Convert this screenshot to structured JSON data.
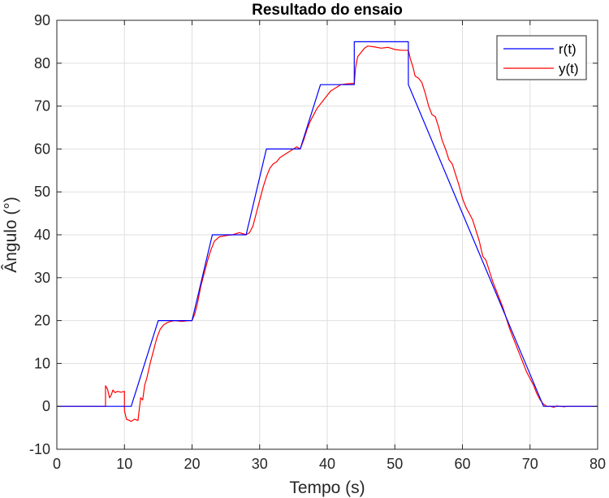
{
  "chart_data": {
    "type": "line",
    "title": "Resultado do ensaio",
    "xlabel": "Tempo (s)",
    "ylabel": "Ângulo (°)",
    "xlim": [
      0,
      80
    ],
    "ylim": [
      -10,
      90
    ],
    "xticks": [
      0,
      10,
      20,
      30,
      40,
      50,
      60,
      70,
      80
    ],
    "yticks": [
      -10,
      0,
      10,
      20,
      30,
      40,
      50,
      60,
      70,
      80,
      90
    ],
    "grid": true,
    "legend_position": "top-right",
    "series": [
      {
        "name": "r(t)",
        "color": "#0000ff",
        "x": [
          0,
          11,
          15,
          20,
          23,
          28,
          31,
          36,
          39,
          44,
          44,
          52,
          52,
          72,
          80
        ],
        "y": [
          0,
          0,
          20,
          20,
          40,
          40,
          60,
          60,
          75,
          75,
          85,
          85,
          75,
          0,
          0
        ]
      },
      {
        "name": "y(t)",
        "color": "#ff0000",
        "x": [
          0,
          7.2,
          7.2,
          7.5,
          7.8,
          8.0,
          8.3,
          8.6,
          9.0,
          9.5,
          10.0,
          10.0,
          10.3,
          10.6,
          11.0,
          11.5,
          12.0,
          12.4,
          12.7,
          13.0,
          13.3,
          13.8,
          14.3,
          14.8,
          15.3,
          15.8,
          16.3,
          16.8,
          17.5,
          18.5,
          19.5,
          20.0,
          20.4,
          20.8,
          21.3,
          21.8,
          22.3,
          22.8,
          23.3,
          24.0,
          25.0,
          26.0,
          27.0,
          28.0,
          28.5,
          29.0,
          29.5,
          30.0,
          30.5,
          31.0,
          31.5,
          32.0,
          32.5,
          33.0,
          34.0,
          35.0,
          35.5,
          36.0,
          36.5,
          37.0,
          37.5,
          38.0,
          38.5,
          39.0,
          39.5,
          40.0,
          40.5,
          41.0,
          41.5,
          42.0,
          43.0,
          44.0,
          44.2,
          44.5,
          45.0,
          45.5,
          46.0,
          47.0,
          48.0,
          49.0,
          50.0,
          51.0,
          52.0,
          52.3,
          52.7,
          53.0,
          53.5,
          54.0,
          54.5,
          55.0,
          55.5,
          56.0,
          56.5,
          57.0,
          57.5,
          58.0,
          58.5,
          59.0,
          59.5,
          60.0,
          60.5,
          61.0,
          61.5,
          62.0,
          62.5,
          63.0,
          63.5,
          64.0,
          64.5,
          65.0,
          65.5,
          66.0,
          66.5,
          67.0,
          67.5,
          68.0,
          68.5,
          69.0,
          69.5,
          70.0,
          70.5,
          71.0,
          71.5,
          72.0,
          72.5,
          73.0,
          73.5,
          74.0,
          74.5,
          75.0,
          75.5,
          76.0,
          77.0,
          78.0,
          80.0
        ],
        "y": [
          0,
          0,
          4.8,
          4.0,
          2.0,
          2.5,
          3.8,
          3.2,
          3.5,
          3.3,
          3.5,
          -1.0,
          -3.0,
          -3.2,
          -3.5,
          -3.0,
          -3.3,
          2.0,
          1.5,
          5.0,
          6.5,
          10.0,
          13.0,
          16.0,
          18.0,
          19.0,
          19.5,
          19.8,
          20.0,
          19.8,
          20.0,
          20.0,
          21.5,
          24.0,
          28.0,
          31.0,
          34.0,
          36.5,
          38.5,
          39.5,
          39.8,
          40.0,
          40.5,
          40.0,
          40.5,
          42.0,
          45.0,
          48.0,
          51.0,
          53.5,
          55.5,
          56.5,
          57.0,
          58.0,
          59.0,
          60.0,
          60.5,
          60.0,
          62.0,
          64.5,
          66.5,
          68.0,
          69.5,
          70.5,
          71.5,
          72.5,
          73.5,
          74.0,
          74.5,
          75.0,
          75.2,
          75.3,
          79.0,
          81.5,
          82.5,
          83.5,
          84.0,
          83.8,
          83.5,
          83.7,
          83.2,
          83.0,
          83.0,
          81.0,
          79.0,
          77.0,
          76.5,
          75.5,
          73.0,
          70.0,
          68.0,
          67.5,
          65.0,
          62.0,
          60.0,
          57.5,
          56.5,
          54.0,
          51.5,
          48.5,
          46.5,
          45.0,
          43.5,
          41.0,
          38.5,
          35.0,
          34.0,
          31.5,
          29.0,
          27.0,
          25.0,
          23.0,
          20.5,
          18.0,
          16.0,
          14.0,
          12.0,
          10.0,
          8.0,
          6.5,
          5.0,
          3.0,
          1.5,
          0.5,
          0.0,
          0.0,
          -0.2,
          0.1,
          0.0,
          -0.1,
          0.0,
          0.0,
          0.0,
          0.0,
          0.0
        ]
      }
    ]
  }
}
